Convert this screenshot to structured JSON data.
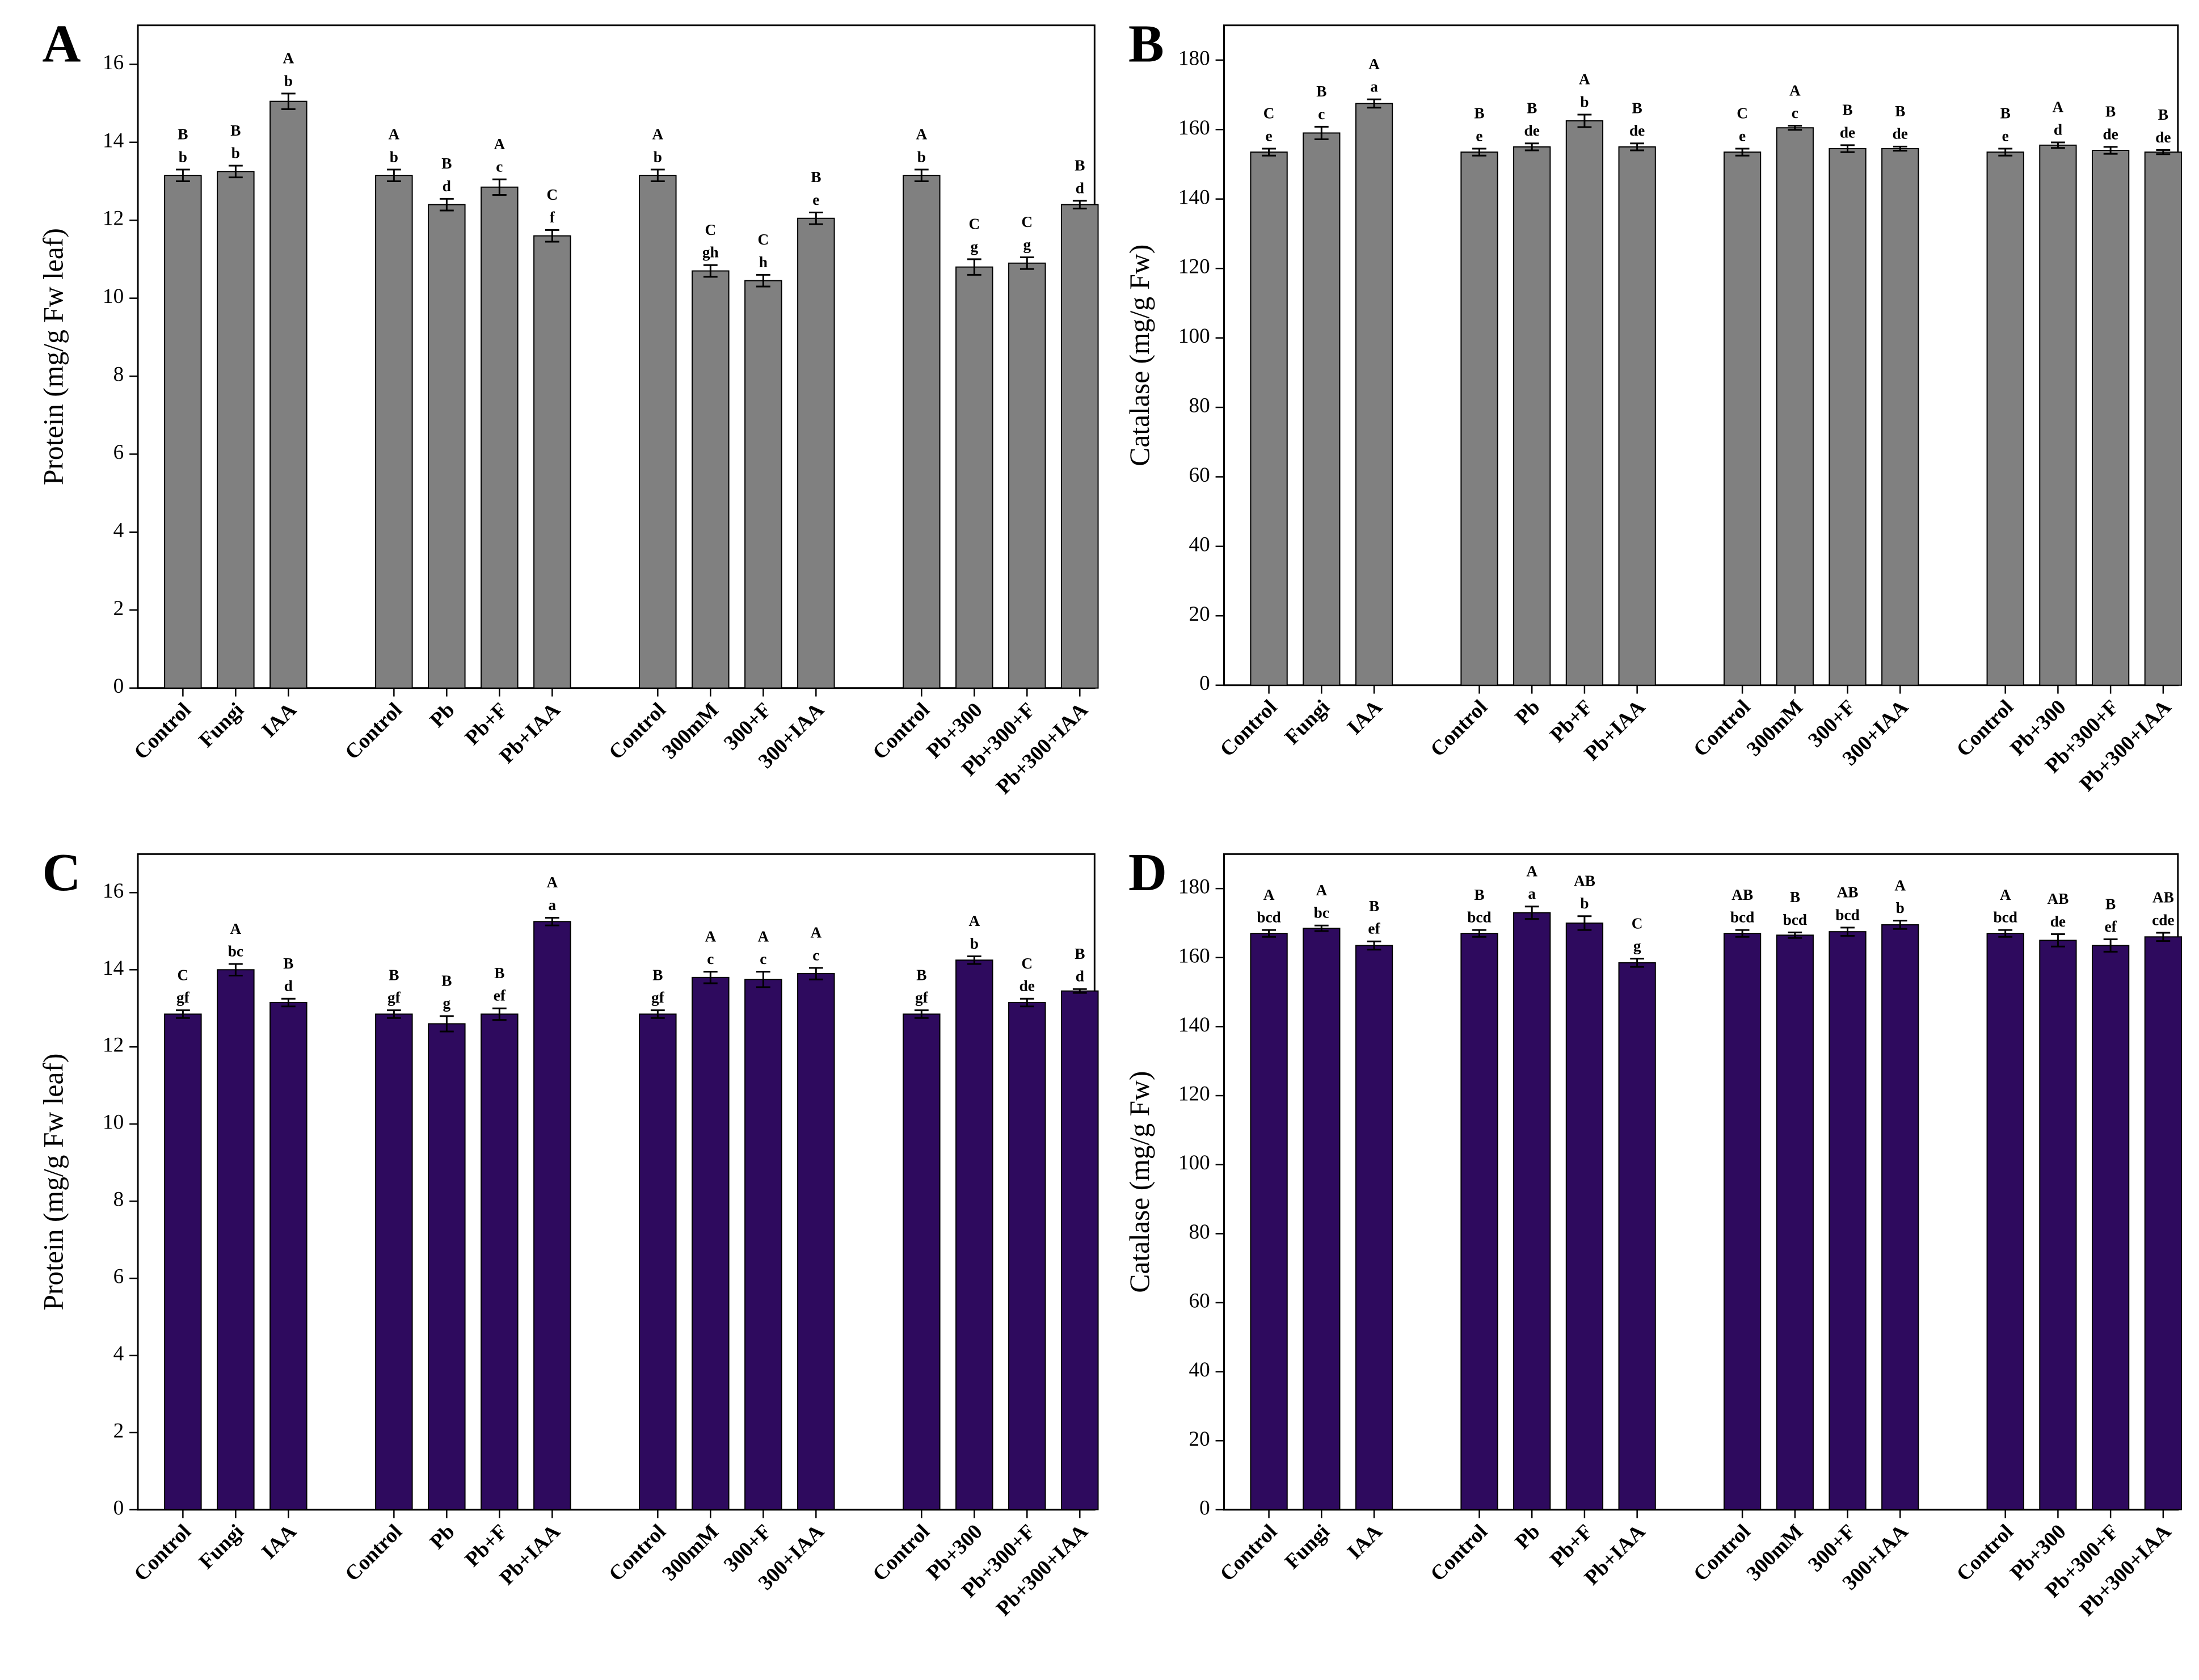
{
  "chart_data": [
    {
      "type": "bar",
      "title": "A",
      "ylabel": "Protein (mg/g Fw leaf)",
      "color": "#808080",
      "categories": [
        "Control",
        "Fungi",
        "IAA",
        "Control",
        "Pb",
        "Pb+F",
        "Pb+IAA",
        "Control",
        "300mM",
        "300+F",
        "300+IAA",
        "Control",
        "Pb+300",
        "Pb+300+F",
        "Pb+300+IAA"
      ],
      "values": [
        13.15,
        13.25,
        15.05,
        13.15,
        12.4,
        12.85,
        11.6,
        13.15,
        10.7,
        10.45,
        12.05,
        13.15,
        10.8,
        10.9,
        12.4
      ],
      "errors": [
        0.15,
        0.15,
        0.2,
        0.15,
        0.15,
        0.2,
        0.15,
        0.15,
        0.15,
        0.15,
        0.15,
        0.15,
        0.2,
        0.15,
        0.1
      ],
      "upper_letters": [
        "B",
        "B",
        "A",
        "A",
        "B",
        "A",
        "C",
        "A",
        "C",
        "C",
        "B",
        "A",
        "C",
        "C",
        "B"
      ],
      "lower_letters": [
        "b",
        "b",
        "b",
        "b",
        "d",
        "c",
        "f",
        "b",
        "gh",
        "h",
        "e",
        "b",
        "g",
        "g",
        "d"
      ],
      "ylim": [
        0,
        17
      ],
      "yticks": [
        0,
        2,
        4,
        6,
        8,
        10,
        12,
        14,
        16
      ]
    },
    {
      "type": "bar",
      "title": "B",
      "ylabel": "Catalase (mg/g Fw)",
      "color": "#808080",
      "categories": [
        "Control",
        "Fungi",
        "IAA",
        "Control",
        "Pb",
        "Pb+F",
        "Pb+IAA",
        "Control",
        "300mM",
        "300+F",
        "300+IAA",
        "Control",
        "Pb+300",
        "Pb+300+F",
        "Pb+300+IAA"
      ],
      "values": [
        153.5,
        159,
        167.5,
        153.5,
        155,
        162.5,
        155,
        153.5,
        160.5,
        154.5,
        154.5,
        153.5,
        155.5,
        154,
        153.5
      ],
      "errors": [
        1,
        1.8,
        1.2,
        1,
        1,
        1.8,
        1,
        1,
        0.6,
        1,
        0.6,
        1,
        0.8,
        1,
        0.6
      ],
      "upper_letters": [
        "C",
        "B",
        "A",
        "B",
        "B",
        "A",
        "B",
        "C",
        "A",
        "B",
        "B",
        "B",
        "A",
        "B",
        "B"
      ],
      "lower_letters": [
        "e",
        "c",
        "a",
        "e",
        "de",
        "b",
        "de",
        "e",
        "c",
        "de",
        "de",
        "e",
        "d",
        "de",
        "de"
      ],
      "ylim": [
        0,
        190
      ],
      "yticks": [
        0,
        20,
        40,
        60,
        80,
        100,
        120,
        140,
        160,
        180
      ]
    },
    {
      "type": "bar",
      "title": "C",
      "ylabel": "Protein (mg/g Fw leaf)",
      "color": "#2e0a5e",
      "categories": [
        "Control",
        "Fungi",
        "IAA",
        "Control",
        "Pb",
        "Pb+F",
        "Pb+IAA",
        "Control",
        "300mM",
        "300+F",
        "300+IAA",
        "Control",
        "Pb+300",
        "Pb+300+F",
        "Pb+300+IAA"
      ],
      "values": [
        12.85,
        14.0,
        13.15,
        12.85,
        12.6,
        12.85,
        15.25,
        12.85,
        13.8,
        13.75,
        13.9,
        12.85,
        14.25,
        13.15,
        13.45
      ],
      "errors": [
        0.1,
        0.15,
        0.1,
        0.1,
        0.2,
        0.15,
        0.1,
        0.1,
        0.15,
        0.2,
        0.15,
        0.1,
        0.1,
        0.1,
        0.05
      ],
      "upper_letters": [
        "C",
        "A",
        "B",
        "B",
        "B",
        "B",
        "A",
        "B",
        "A",
        "A",
        "A",
        "B",
        "A",
        "C",
        "B"
      ],
      "lower_letters": [
        "gf",
        "bc",
        "d",
        "gf",
        "g",
        "ef",
        "a",
        "gf",
        "c",
        "c",
        "c",
        "gf",
        "b",
        "de",
        "d"
      ],
      "ylim": [
        0,
        17
      ],
      "yticks": [
        0,
        2,
        4,
        6,
        8,
        10,
        12,
        14,
        16
      ]
    },
    {
      "type": "bar",
      "title": "D",
      "ylabel": "Catalase (mg/g Fw)",
      "color": "#2e0a5e",
      "categories": [
        "Control",
        "Fungi",
        "IAA",
        "Control",
        "Pb",
        "Pb+F",
        "Pb+IAA",
        "Control",
        "300mM",
        "300+F",
        "300+IAA",
        "Control",
        "Pb+300",
        "Pb+300+F",
        "Pb+300+IAA"
      ],
      "values": [
        167,
        168.5,
        163.5,
        167,
        173,
        170,
        158.5,
        167,
        166.5,
        167.5,
        169.5,
        167,
        165,
        163.5,
        166
      ],
      "errors": [
        1,
        0.8,
        1.2,
        1,
        1.8,
        2,
        1.2,
        1,
        0.8,
        1.2,
        1.2,
        1,
        1.8,
        1.8,
        1.2
      ],
      "upper_letters": [
        "A",
        "A",
        "B",
        "B",
        "A",
        "AB",
        "C",
        "AB",
        "B",
        "AB",
        "A",
        "A",
        "AB",
        "B",
        "AB"
      ],
      "lower_letters": [
        "bcd",
        "bc",
        "ef",
        "bcd",
        "a",
        "b",
        "g",
        "bcd",
        "bcd",
        "bcd",
        "b",
        "bcd",
        "de",
        "ef",
        "cde"
      ],
      "ylim": [
        0,
        190
      ],
      "yticks": [
        0,
        20,
        40,
        60,
        80,
        100,
        120,
        140,
        160,
        180
      ]
    }
  ]
}
